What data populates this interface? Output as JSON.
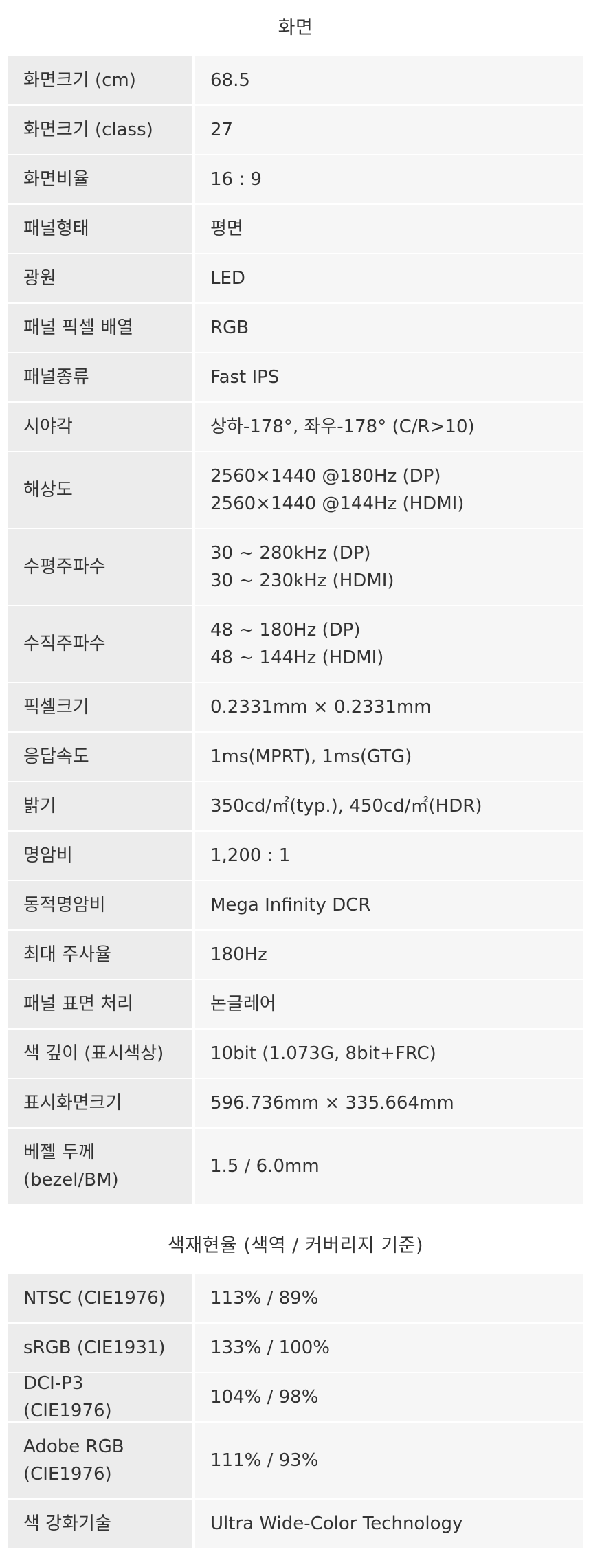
{
  "section1": {
    "title": "화면",
    "rows": [
      {
        "label": "화면크기 (cm)",
        "value": "68.5"
      },
      {
        "label": "화면크기 (class)",
        "value": "27"
      },
      {
        "label": "화면비율",
        "value": "16 : 9"
      },
      {
        "label": "패널형태",
        "value": "평면"
      },
      {
        "label": "광원",
        "value": "LED"
      },
      {
        "label": "패널 픽셀 배열",
        "value": "RGB"
      },
      {
        "label": "패널종류",
        "value": "Fast IPS"
      },
      {
        "label": "시야각",
        "value": "상하-178°, 좌우-178°  (C/R>10)"
      },
      {
        "label": "해상도",
        "value": "2560×1440 @180Hz (DP)",
        "value2": "2560×1440 @144Hz (HDMI)"
      },
      {
        "label": "수평주파수",
        "value": "30 ~ 280kHz (DP)",
        "value2": "30 ~ 230kHz (HDMI)"
      },
      {
        "label": "수직주파수",
        "value": "48 ~ 180Hz (DP)",
        "value2": "48 ~ 144Hz (HDMI)"
      },
      {
        "label": "픽셀크기",
        "value": "0.2331mm × 0.2331mm"
      },
      {
        "label": "응답속도",
        "value": "1ms(MPRT), 1ms(GTG)"
      },
      {
        "label": "밝기",
        "value": "350cd/㎡(typ.), 450cd/㎡(HDR)"
      },
      {
        "label": "명암비",
        "value": "1,200 : 1"
      },
      {
        "label": "동적명암비",
        "value": "Mega Infinity DCR"
      },
      {
        "label": "최대 주사율",
        "value": "180Hz"
      },
      {
        "label": "패널 표면 처리",
        "value": "논글레어"
      },
      {
        "label": "색 깊이 (표시색상)",
        "value": "10bit (1.073G, 8bit+FRC)"
      },
      {
        "label": "표시화면크기",
        "value": "596.736mm × 335.664mm"
      },
      {
        "label": "베젤 두께",
        "label2": "(bezel/BM)",
        "value": "1.5 / 6.0mm"
      }
    ]
  },
  "section2": {
    "title": "색재현율 (색역 / 커버리지 기준)",
    "rows": [
      {
        "label": "NTSC (CIE1976)",
        "value": "113% / 89%"
      },
      {
        "label": "sRGB (CIE1931)",
        "value": "133% / 100%"
      },
      {
        "label": "DCI-P3 (CIE1976)",
        "value": "104% / 98%"
      },
      {
        "label": "Adobe RGB",
        "label2": "(CIE1976)",
        "value": "111% / 93%"
      },
      {
        "label": "색 강화기술",
        "value": "Ultra Wide-Color Technology"
      }
    ]
  }
}
